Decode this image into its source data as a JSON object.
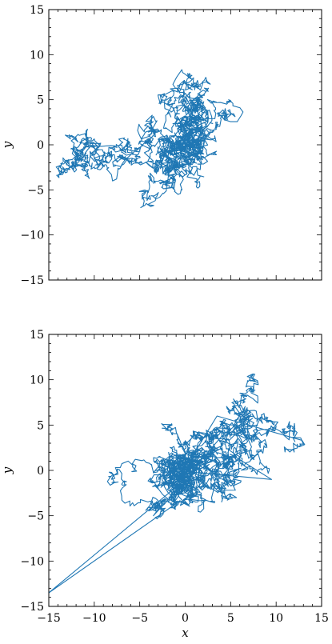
{
  "chart_data": [
    {
      "type": "line",
      "panel": "top",
      "title": "",
      "xlabel": "",
      "ylabel": "y",
      "xlim": [
        -15,
        15
      ],
      "ylim": [
        -15,
        15
      ],
      "xticks": [
        -15,
        -10,
        -5,
        0,
        5,
        10,
        15
      ],
      "yticks": [
        -15,
        -10,
        -5,
        0,
        5,
        10,
        15
      ],
      "xtick_labels_visible": false,
      "grid": false,
      "legend": "none",
      "series_color": "#1f77b4",
      "random_walk": {
        "seed": 11,
        "steps": 2600,
        "step_size": 0.32,
        "center": [
          0,
          0
        ],
        "envelope": [
          [
            -12,
            -2.5
          ],
          [
            -9,
            -1.5
          ],
          [
            -7,
            -1
          ],
          [
            -5,
            0
          ],
          [
            -4,
            4
          ],
          [
            -1,
            5
          ],
          [
            2,
            4
          ],
          [
            4,
            5
          ],
          [
            5,
            4
          ],
          [
            6,
            -2
          ],
          [
            8,
            -4
          ],
          [
            5,
            -6
          ],
          [
            3,
            -8
          ],
          [
            2,
            -9.5
          ],
          [
            1,
            -7
          ],
          [
            -2,
            -6
          ],
          [
            -4,
            -8
          ],
          [
            -5,
            -6
          ],
          [
            -4,
            -4
          ],
          [
            -3,
            -1
          ]
        ],
        "jumps": []
      }
    },
    {
      "type": "line",
      "panel": "bottom",
      "title": "",
      "xlabel": "x",
      "ylabel": "y",
      "xlim": [
        -15,
        15
      ],
      "ylim": [
        -15,
        15
      ],
      "xticks": [
        -15,
        -10,
        -5,
        0,
        5,
        10,
        15
      ],
      "yticks": [
        -15,
        -10,
        -5,
        0,
        5,
        10,
        15
      ],
      "xtick_labels_visible": true,
      "grid": false,
      "legend": "none",
      "series_color": "#1f77b4",
      "random_walk": {
        "seed": 29,
        "steps": 2900,
        "step_size": 0.33,
        "center": [
          0,
          -1
        ],
        "envelope": [
          [
            -8,
            1.5
          ],
          [
            -8,
            3.5
          ],
          [
            -6,
            3
          ],
          [
            -3,
            2
          ],
          [
            -2,
            6.5
          ],
          [
            0,
            7
          ],
          [
            1,
            6
          ],
          [
            1.5,
            4
          ],
          [
            4,
            9
          ],
          [
            7,
            10.5
          ],
          [
            7,
            8
          ],
          [
            5.5,
            5.5
          ],
          [
            3,
            3
          ],
          [
            6,
            1
          ],
          [
            9.5,
            -1
          ],
          [
            11,
            1
          ],
          [
            12.5,
            2
          ],
          [
            10,
            3.5
          ],
          [
            9.5,
            0
          ],
          [
            5,
            -3
          ],
          [
            3,
            -5
          ],
          [
            0,
            -4
          ],
          [
            -2,
            -3
          ],
          [
            -5,
            -5
          ],
          [
            -6,
            -3
          ],
          [
            -6,
            -1.5
          ]
        ],
        "jumps": [
          [
            -15,
            -13.5
          ],
          [
            -3.5,
            -5
          ],
          [
            3.5,
            6
          ],
          [
            9.5,
            -1
          ],
          [
            2.5,
            2
          ]
        ]
      }
    }
  ]
}
